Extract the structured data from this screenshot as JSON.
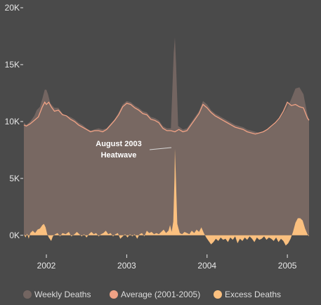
{
  "chart_data": {
    "type": "area",
    "title": "",
    "xlabel": "",
    "ylabel": "",
    "ylim": [
      -1000,
      20000
    ],
    "xlim": [
      2001.72,
      2005.27
    ],
    "y_ticks": [
      {
        "value": 0,
        "label": "0K"
      },
      {
        "value": 5000,
        "label": "5K"
      },
      {
        "value": 10000,
        "label": "10K"
      },
      {
        "value": 15000,
        "label": "15K"
      },
      {
        "value": 20000,
        "label": "20K"
      }
    ],
    "x_ticks": [
      {
        "value": 2002,
        "label": "2002"
      },
      {
        "value": 2003,
        "label": "2003"
      },
      {
        "value": 2004,
        "label": "2004"
      },
      {
        "value": 2005,
        "label": "2005"
      }
    ],
    "grid": false,
    "legend_position": "bottom",
    "annotation": {
      "lines": [
        "August 2003",
        "Heatwave"
      ],
      "x": 2003.6,
      "y": 7700
    },
    "series": [
      {
        "name": "Weekly Deaths",
        "color": "#736561",
        "points": [
          [
            2001.72,
            9900
          ],
          [
            2001.75,
            9700
          ],
          [
            2001.8,
            10000
          ],
          [
            2001.85,
            10500
          ],
          [
            2001.88,
            11000
          ],
          [
            2001.92,
            11300
          ],
          [
            2001.95,
            12000
          ],
          [
            2001.98,
            12800
          ],
          [
            2002.0,
            12800
          ],
          [
            2002.02,
            12400
          ],
          [
            2002.05,
            11600
          ],
          [
            2002.1,
            11200
          ],
          [
            2002.15,
            11200
          ],
          [
            2002.2,
            10700
          ],
          [
            2002.25,
            10500
          ],
          [
            2002.3,
            10400
          ],
          [
            2002.35,
            10200
          ],
          [
            2002.4,
            9900
          ],
          [
            2002.45,
            9700
          ],
          [
            2002.5,
            9400
          ],
          [
            2002.55,
            9200
          ],
          [
            2002.6,
            9300
          ],
          [
            2002.65,
            9400
          ],
          [
            2002.7,
            9300
          ],
          [
            2002.75,
            9400
          ],
          [
            2002.8,
            9800
          ],
          [
            2002.85,
            10200
          ],
          [
            2002.9,
            10800
          ],
          [
            2002.95,
            11500
          ],
          [
            2003.0,
            11800
          ],
          [
            2003.05,
            11700
          ],
          [
            2003.1,
            11400
          ],
          [
            2003.15,
            11200
          ],
          [
            2003.2,
            10900
          ],
          [
            2003.25,
            10800
          ],
          [
            2003.3,
            10400
          ],
          [
            2003.35,
            10300
          ],
          [
            2003.4,
            10100
          ],
          [
            2003.45,
            9600
          ],
          [
            2003.5,
            9400
          ],
          [
            2003.55,
            9400
          ],
          [
            2003.585,
            16000
          ],
          [
            2003.6,
            17400
          ],
          [
            2003.615,
            15000
          ],
          [
            2003.64,
            9600
          ],
          [
            2003.7,
            9300
          ],
          [
            2003.75,
            9400
          ],
          [
            2003.8,
            9900
          ],
          [
            2003.85,
            10400
          ],
          [
            2003.9,
            10900
          ],
          [
            2003.95,
            11800
          ],
          [
            2004.0,
            11500
          ],
          [
            2004.05,
            11000
          ],
          [
            2004.1,
            10700
          ],
          [
            2004.15,
            10500
          ],
          [
            2004.2,
            10300
          ],
          [
            2004.25,
            10100
          ],
          [
            2004.3,
            9900
          ],
          [
            2004.35,
            9700
          ],
          [
            2004.4,
            9600
          ],
          [
            2004.45,
            9500
          ],
          [
            2004.5,
            9300
          ],
          [
            2004.55,
            9200
          ],
          [
            2004.6,
            9100
          ],
          [
            2004.65,
            9000
          ],
          [
            2004.7,
            9100
          ],
          [
            2004.75,
            9300
          ],
          [
            2004.8,
            9500
          ],
          [
            2004.85,
            9800
          ],
          [
            2004.9,
            10200
          ],
          [
            2004.95,
            10700
          ],
          [
            2005.0,
            11200
          ],
          [
            2005.05,
            12000
          ],
          [
            2005.1,
            12900
          ],
          [
            2005.15,
            13000
          ],
          [
            2005.2,
            12400
          ],
          [
            2005.25,
            10600
          ],
          [
            2005.27,
            10200
          ]
        ]
      },
      {
        "name": "Average (2001-2005)",
        "color": "#f0a285",
        "points": [
          [
            2001.72,
            9700
          ],
          [
            2001.75,
            9600
          ],
          [
            2001.8,
            9800
          ],
          [
            2001.85,
            10100
          ],
          [
            2001.9,
            10400
          ],
          [
            2001.95,
            11300
          ],
          [
            2001.98,
            11700
          ],
          [
            2002.0,
            11500
          ],
          [
            2002.03,
            11700
          ],
          [
            2002.06,
            11300
          ],
          [
            2002.1,
            10900
          ],
          [
            2002.15,
            11000
          ],
          [
            2002.2,
            10600
          ],
          [
            2002.25,
            10500
          ],
          [
            2002.3,
            10200
          ],
          [
            2002.35,
            10000
          ],
          [
            2002.4,
            9700
          ],
          [
            2002.45,
            9500
          ],
          [
            2002.5,
            9300
          ],
          [
            2002.55,
            9100
          ],
          [
            2002.6,
            9200
          ],
          [
            2002.65,
            9200
          ],
          [
            2002.7,
            9100
          ],
          [
            2002.75,
            9300
          ],
          [
            2002.8,
            9700
          ],
          [
            2002.85,
            10100
          ],
          [
            2002.9,
            10600
          ],
          [
            2002.95,
            11300
          ],
          [
            2003.0,
            11600
          ],
          [
            2003.05,
            11500
          ],
          [
            2003.1,
            11200
          ],
          [
            2003.15,
            11000
          ],
          [
            2003.2,
            10700
          ],
          [
            2003.25,
            10600
          ],
          [
            2003.3,
            10200
          ],
          [
            2003.35,
            10100
          ],
          [
            2003.4,
            9900
          ],
          [
            2003.45,
            9400
          ],
          [
            2003.5,
            9200
          ],
          [
            2003.55,
            9200
          ],
          [
            2003.6,
            9100
          ],
          [
            2003.65,
            9300
          ],
          [
            2003.7,
            9100
          ],
          [
            2003.75,
            9200
          ],
          [
            2003.8,
            9700
          ],
          [
            2003.85,
            10200
          ],
          [
            2003.9,
            10700
          ],
          [
            2003.95,
            11500
          ],
          [
            2004.0,
            11200
          ],
          [
            2004.05,
            10800
          ],
          [
            2004.1,
            10500
          ],
          [
            2004.15,
            10300
          ],
          [
            2004.2,
            10100
          ],
          [
            2004.25,
            9900
          ],
          [
            2004.3,
            9700
          ],
          [
            2004.35,
            9500
          ],
          [
            2004.4,
            9400
          ],
          [
            2004.45,
            9300
          ],
          [
            2004.5,
            9100
          ],
          [
            2004.55,
            9000
          ],
          [
            2004.6,
            8900
          ],
          [
            2004.65,
            9000
          ],
          [
            2004.7,
            9100
          ],
          [
            2004.75,
            9300
          ],
          [
            2004.8,
            9600
          ],
          [
            2004.85,
            9900
          ],
          [
            2004.9,
            10300
          ],
          [
            2004.95,
            10900
          ],
          [
            2005.0,
            11700
          ],
          [
            2005.05,
            11400
          ],
          [
            2005.1,
            11500
          ],
          [
            2005.15,
            11300
          ],
          [
            2005.2,
            11200
          ],
          [
            2005.25,
            10300
          ],
          [
            2005.27,
            10100
          ]
        ]
      },
      {
        "name": "Excess Deaths",
        "color": "#fbc07f",
        "points": [
          [
            2001.72,
            100
          ],
          [
            2001.74,
            -200
          ],
          [
            2001.76,
            150
          ],
          [
            2001.78,
            -300
          ],
          [
            2001.8,
            200
          ],
          [
            2001.83,
            400
          ],
          [
            2001.86,
            200
          ],
          [
            2001.89,
            500
          ],
          [
            2001.92,
            600
          ],
          [
            2001.95,
            900
          ],
          [
            2001.97,
            1000
          ],
          [
            2001.99,
            700
          ],
          [
            2002.01,
            100
          ],
          [
            2002.03,
            -200
          ],
          [
            2002.06,
            -500
          ],
          [
            2002.08,
            -100
          ],
          [
            2002.11,
            100
          ],
          [
            2002.14,
            200
          ],
          [
            2002.17,
            -100
          ],
          [
            2002.2,
            200
          ],
          [
            2002.24,
            100
          ],
          [
            2002.28,
            300
          ],
          [
            2002.31,
            -100
          ],
          [
            2002.35,
            100
          ],
          [
            2002.38,
            300
          ],
          [
            2002.41,
            100
          ],
          [
            2002.44,
            -100
          ],
          [
            2002.47,
            100
          ],
          [
            2002.5,
            -200
          ],
          [
            2002.53,
            100
          ],
          [
            2002.56,
            300
          ],
          [
            2002.59,
            100
          ],
          [
            2002.62,
            200
          ],
          [
            2002.65,
            -100
          ],
          [
            2002.68,
            100
          ],
          [
            2002.71,
            200
          ],
          [
            2002.74,
            400
          ],
          [
            2002.77,
            100
          ],
          [
            2002.8,
            200
          ],
          [
            2002.83,
            -100
          ],
          [
            2002.86,
            100
          ],
          [
            2002.89,
            200
          ],
          [
            2002.92,
            -300
          ],
          [
            2002.95,
            -100
          ],
          [
            2002.98,
            100
          ],
          [
            2003.01,
            -200
          ],
          [
            2003.04,
            100
          ],
          [
            2003.07,
            -100
          ],
          [
            2003.1,
            100
          ],
          [
            2003.13,
            -300
          ],
          [
            2003.16,
            100
          ],
          [
            2003.19,
            200
          ],
          [
            2003.22,
            -100
          ],
          [
            2003.25,
            400
          ],
          [
            2003.28,
            200
          ],
          [
            2003.31,
            300
          ],
          [
            2003.34,
            100
          ],
          [
            2003.37,
            200
          ],
          [
            2003.4,
            100
          ],
          [
            2003.43,
            300
          ],
          [
            2003.46,
            500
          ],
          [
            2003.49,
            200
          ],
          [
            2003.52,
            400
          ],
          [
            2003.54,
            900
          ],
          [
            2003.56,
            300
          ],
          [
            2003.58,
            1200
          ],
          [
            2003.595,
            5000
          ],
          [
            2003.6,
            7600
          ],
          [
            2003.61,
            5500
          ],
          [
            2003.63,
            1000
          ],
          [
            2003.66,
            200
          ],
          [
            2003.69,
            100
          ],
          [
            2003.72,
            300
          ],
          [
            2003.75,
            200
          ],
          [
            2003.78,
            100
          ],
          [
            2003.81,
            400
          ],
          [
            2003.84,
            200
          ],
          [
            2003.87,
            500
          ],
          [
            2003.9,
            300
          ],
          [
            2003.93,
            700
          ],
          [
            2003.96,
            200
          ],
          [
            2003.99,
            -200
          ],
          [
            2004.02,
            -500
          ],
          [
            2004.05,
            -800
          ],
          [
            2004.08,
            -600
          ],
          [
            2004.11,
            -300
          ],
          [
            2004.14,
            -500
          ],
          [
            2004.17,
            -200
          ],
          [
            2004.2,
            -400
          ],
          [
            2004.23,
            -300
          ],
          [
            2004.26,
            -600
          ],
          [
            2004.29,
            -200
          ],
          [
            2004.32,
            -400
          ],
          [
            2004.35,
            -100
          ],
          [
            2004.38,
            -700
          ],
          [
            2004.41,
            -300
          ],
          [
            2004.44,
            -500
          ],
          [
            2004.47,
            -200
          ],
          [
            2004.5,
            -400
          ],
          [
            2004.53,
            -100
          ],
          [
            2004.56,
            -300
          ],
          [
            2004.59,
            -600
          ],
          [
            2004.62,
            -200
          ],
          [
            2004.65,
            -400
          ],
          [
            2004.68,
            -300
          ],
          [
            2004.71,
            -100
          ],
          [
            2004.74,
            -400
          ],
          [
            2004.77,
            -200
          ],
          [
            2004.8,
            -300
          ],
          [
            2004.83,
            -500
          ],
          [
            2004.86,
            -200
          ],
          [
            2004.89,
            -600
          ],
          [
            2004.92,
            -300
          ],
          [
            2004.95,
            -500
          ],
          [
            2004.98,
            -900
          ],
          [
            2005.01,
            -700
          ],
          [
            2005.04,
            -300
          ],
          [
            2005.07,
            300
          ],
          [
            2005.1,
            1100
          ],
          [
            2005.13,
            1500
          ],
          [
            2005.16,
            1500
          ],
          [
            2005.19,
            1300
          ],
          [
            2005.22,
            600
          ],
          [
            2005.25,
            100
          ],
          [
            2005.27,
            -100
          ]
        ]
      }
    ]
  }
}
